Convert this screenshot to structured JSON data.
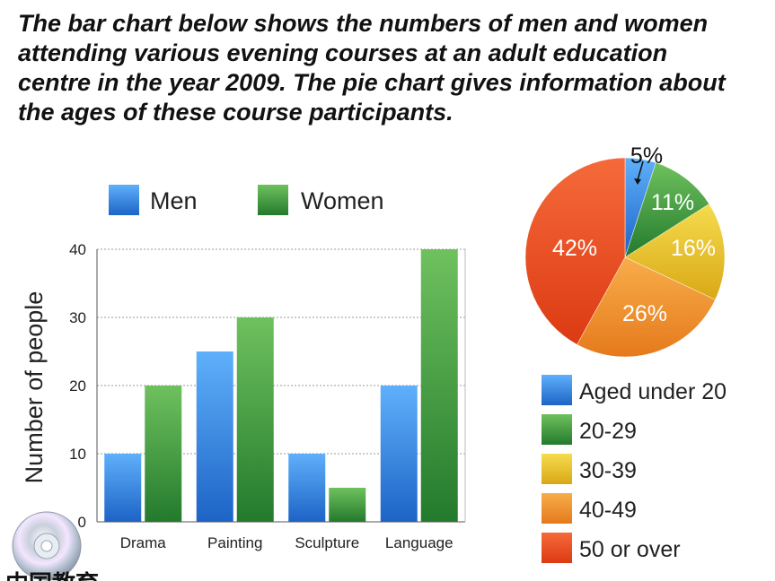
{
  "heading": {
    "line1": "The bar chart below shows the numbers of men and women",
    "line2": "attending various evening courses at an adult education",
    "line3": "centre in the year 2009. The pie chart gives information about",
    "line4": "the ages of these course participants."
  },
  "watermark": {
    "text": "中国教育"
  },
  "colors": {
    "men": "#2f86e6",
    "women": "#3c9b3c",
    "under20": "#2f86e6",
    "a20_29": "#3c9b3c",
    "a30_39": "#e9c22e",
    "a40_49": "#f0902a",
    "a50_over": "#ea4a20"
  },
  "chart_data": [
    {
      "type": "bar",
      "title": "",
      "xlabel": "",
      "ylabel": "Number of people",
      "categories": [
        "Drama",
        "Painting",
        "Sculpture",
        "Language"
      ],
      "series": [
        {
          "name": "Men",
          "values": [
            10,
            25,
            10,
            20
          ]
        },
        {
          "name": "Women",
          "values": [
            20,
            30,
            5,
            40
          ]
        }
      ],
      "ylim": [
        0,
        40
      ],
      "yticks": [
        0,
        10,
        20,
        30,
        40
      ],
      "grid": true,
      "legend": "top"
    },
    {
      "type": "pie",
      "labels": [
        "Aged under 20",
        "20-29",
        "30-39",
        "40-49",
        "50 or over"
      ],
      "values": [
        5,
        11,
        16,
        26,
        42
      ],
      "value_labels": [
        "5%",
        "11%",
        "16%",
        "26%",
        "42%"
      ],
      "legend": "bottom"
    }
  ]
}
